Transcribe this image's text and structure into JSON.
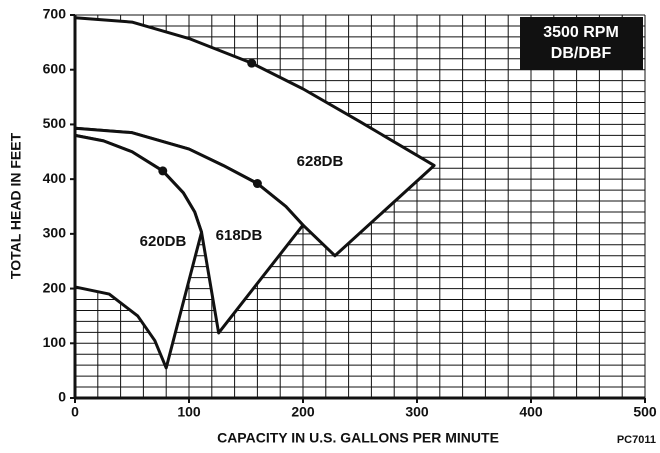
{
  "chart_data": {
    "type": "region",
    "xlabel": "CAPACITY IN U.S. GALLONS PER MINUTE",
    "ylabel": "TOTAL HEAD IN FEET",
    "annotation": [
      "3500 RPM",
      "DB/DBF"
    ],
    "code": "PC7011",
    "xlim": [
      0,
      500
    ],
    "ylim": [
      0,
      700
    ],
    "xticks": [
      0,
      100,
      200,
      300,
      400,
      500
    ],
    "yticks": [
      0,
      100,
      200,
      300,
      400,
      500,
      600,
      700
    ],
    "grid": {
      "x_step": 20,
      "y_step": 20,
      "color": "#111111"
    },
    "series": [
      {
        "name": "628DB",
        "color": "#ffffff",
        "x": [
          0,
          50,
          100,
          155,
          200,
          250,
          315,
          228,
          200,
          185,
          160,
          130,
          100,
          50,
          0
        ],
        "y": [
          695,
          687,
          657,
          612,
          565,
          505,
          425,
          260,
          316,
          350,
          392,
          425,
          455,
          485,
          493
        ]
      },
      {
        "name": "618DB",
        "color": "#ffffff",
        "x": [
          0,
          50,
          100,
          130,
          160,
          185,
          200,
          126,
          111,
          105,
          95,
          77,
          50,
          25,
          0
        ],
        "y": [
          493,
          485,
          455,
          425,
          392,
          350,
          316,
          119,
          303,
          340,
          375,
          415,
          450,
          470,
          480
        ]
      },
      {
        "name": "620DB",
        "color": "#ffffff",
        "x": [
          0,
          25,
          50,
          77,
          95,
          105,
          111,
          80,
          70,
          55,
          30,
          0
        ],
        "y": [
          480,
          470,
          450,
          415,
          375,
          340,
          303,
          55,
          105,
          150,
          190,
          203
        ]
      }
    ],
    "markers": {
      "x": [
        155,
        160,
        77
      ],
      "y": [
        612,
        392,
        415
      ]
    }
  }
}
